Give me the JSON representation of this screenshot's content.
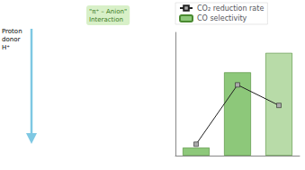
{
  "chart_data": {
    "type": "bar",
    "categories": [
      null,
      null,
      null
    ],
    "series": [
      {
        "name": "CO₂ reduction rate",
        "type": "line",
        "color": "#222222",
        "marker": "square",
        "values": [
          0.1,
          0.62,
          0.44
        ]
      },
      {
        "name": "CO selectivity",
        "type": "bar",
        "colors": [
          "#8dc87a",
          "#8dc87a",
          "#b8dba8"
        ],
        "values": [
          0.07,
          0.73,
          0.9
        ]
      }
    ],
    "ylim": [
      0,
      1.08
    ],
    "yticks": [],
    "tick_labels": false,
    "grid": false,
    "legend": "upper left",
    "annotations": [
      "Proton\ndonor\nH⁺",
      "\"π⁺ – Anion\"\nInteraction"
    ]
  }
}
